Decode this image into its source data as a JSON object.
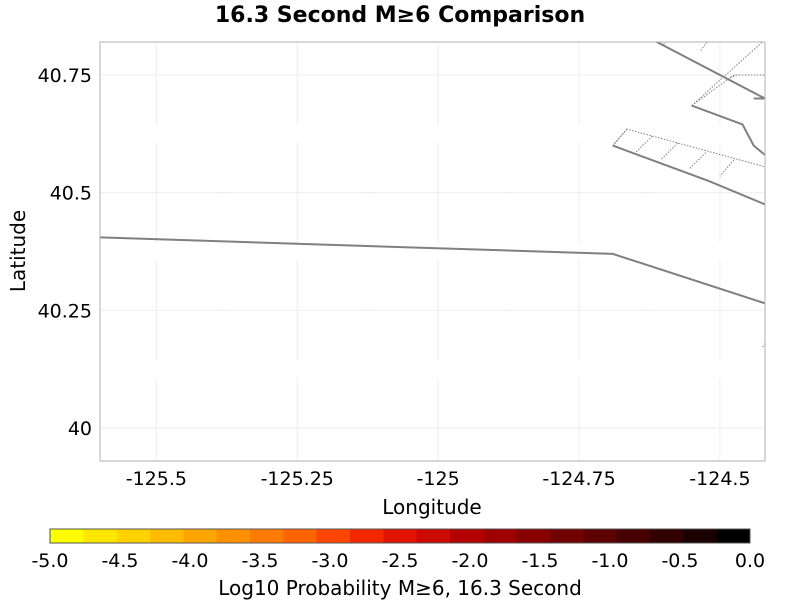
{
  "chart_data": {
    "type": "map",
    "title": "16.3 Second M≥6 Comparison",
    "xlabel": "Longitude",
    "ylabel": "Latitude",
    "xlim": [
      -125.6,
      -124.42
    ],
    "ylim": [
      39.93,
      40.82
    ],
    "x_ticks": [
      {
        "value": -125.5,
        "label": "-125.5"
      },
      {
        "value": -125.25,
        "label": "-125.25"
      },
      {
        "value": -125.0,
        "label": "-125"
      },
      {
        "value": -124.75,
        "label": "-124.75"
      },
      {
        "value": -124.5,
        "label": "-124.5"
      }
    ],
    "y_ticks": [
      {
        "value": 40.75,
        "label": "40.75"
      },
      {
        "value": 40.5,
        "label": "40.5"
      },
      {
        "value": 40.25,
        "label": "40.25"
      },
      {
        "value": 40.0,
        "label": "40"
      }
    ],
    "grid": false,
    "fault_traces": [
      {
        "style": "solid",
        "points": [
          [
            -125.6,
            40.405
          ],
          [
            -124.69,
            40.37
          ],
          [
            -124.42,
            40.265
          ]
        ]
      },
      {
        "style": "solid",
        "points": [
          [
            -124.69,
            40.6
          ],
          [
            -124.52,
            40.525
          ],
          [
            -124.42,
            40.475
          ]
        ]
      },
      {
        "style": "solid",
        "points": [
          [
            -124.62,
            40.825
          ],
          [
            -124.42,
            40.7
          ],
          [
            -124.44,
            40.7
          ]
        ]
      },
      {
        "style": "solid",
        "points": [
          [
            -124.55,
            40.685
          ],
          [
            -124.46,
            40.645
          ],
          [
            -124.44,
            40.6
          ],
          [
            -124.42,
            40.58
          ]
        ]
      },
      {
        "style": "dotted",
        "points": [
          [
            -124.69,
            40.6
          ],
          [
            -124.665,
            40.635
          ],
          [
            -124.42,
            40.555
          ]
        ]
      },
      {
        "style": "dotted",
        "points": [
          [
            -124.55,
            40.685
          ],
          [
            -124.475,
            40.75
          ],
          [
            -124.42,
            40.75
          ]
        ]
      },
      {
        "style": "dotted",
        "points": [
          [
            -124.55,
            40.685
          ],
          [
            -124.42,
            40.825
          ]
        ]
      },
      {
        "style": "dotted",
        "points": [
          [
            -124.42,
            40.18
          ],
          [
            -124.425,
            40.17
          ]
        ]
      }
    ],
    "colorbar": {
      "label": "Log10 Probability M≥6, 16.3 Second",
      "min": -5.0,
      "max": 0.0,
      "ticks": [
        {
          "value": -5.0,
          "label": "-5.0"
        },
        {
          "value": -4.5,
          "label": "-4.5"
        },
        {
          "value": -4.0,
          "label": "-4.0"
        },
        {
          "value": -3.5,
          "label": "-3.5"
        },
        {
          "value": -3.0,
          "label": "-3.0"
        },
        {
          "value": -2.5,
          "label": "-2.5"
        },
        {
          "value": -2.0,
          "label": "-2.0"
        },
        {
          "value": -1.5,
          "label": "-1.5"
        },
        {
          "value": -1.0,
          "label": "-1.0"
        },
        {
          "value": -0.5,
          "label": "-0.5"
        },
        {
          "value": 0.0,
          "label": "0.0"
        }
      ],
      "colors": [
        "#ffff00",
        "#ffe800",
        "#ffd200",
        "#ffbc00",
        "#ffa600",
        "#ff9000",
        "#ff7a00",
        "#ff6400",
        "#ff4600",
        "#f32800",
        "#e01400",
        "#cc0a00",
        "#b30000",
        "#9e0000",
        "#880000",
        "#720000",
        "#5c0000",
        "#470000",
        "#320000",
        "#1a0000",
        "#000000"
      ]
    },
    "colors": {
      "fault_line": "#808080",
      "frame": "#b0b0b0",
      "grid": "#eeeeee"
    }
  }
}
